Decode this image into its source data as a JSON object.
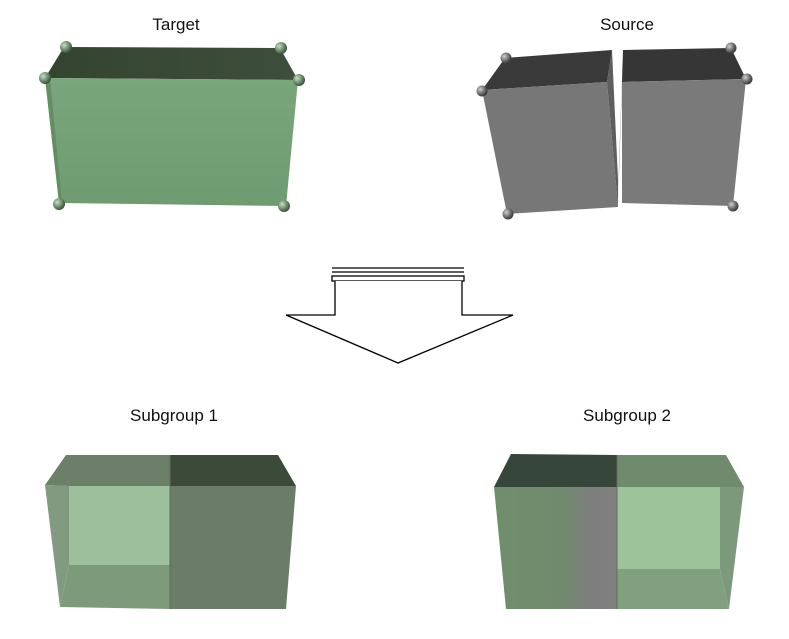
{
  "labels": {
    "target": "Target",
    "source": "Source",
    "subgroup1": "Subgroup 1",
    "subgroup2": "Subgroup 2"
  },
  "colors": {
    "target_face": "#74a275",
    "target_top": "#3b4a3a",
    "source_face": "#777777",
    "source_top": "#3a3a3a",
    "sphere_green": "#6d8f6d",
    "sphere_gray": "#707070",
    "translucent_green": "#8fbf8f"
  }
}
